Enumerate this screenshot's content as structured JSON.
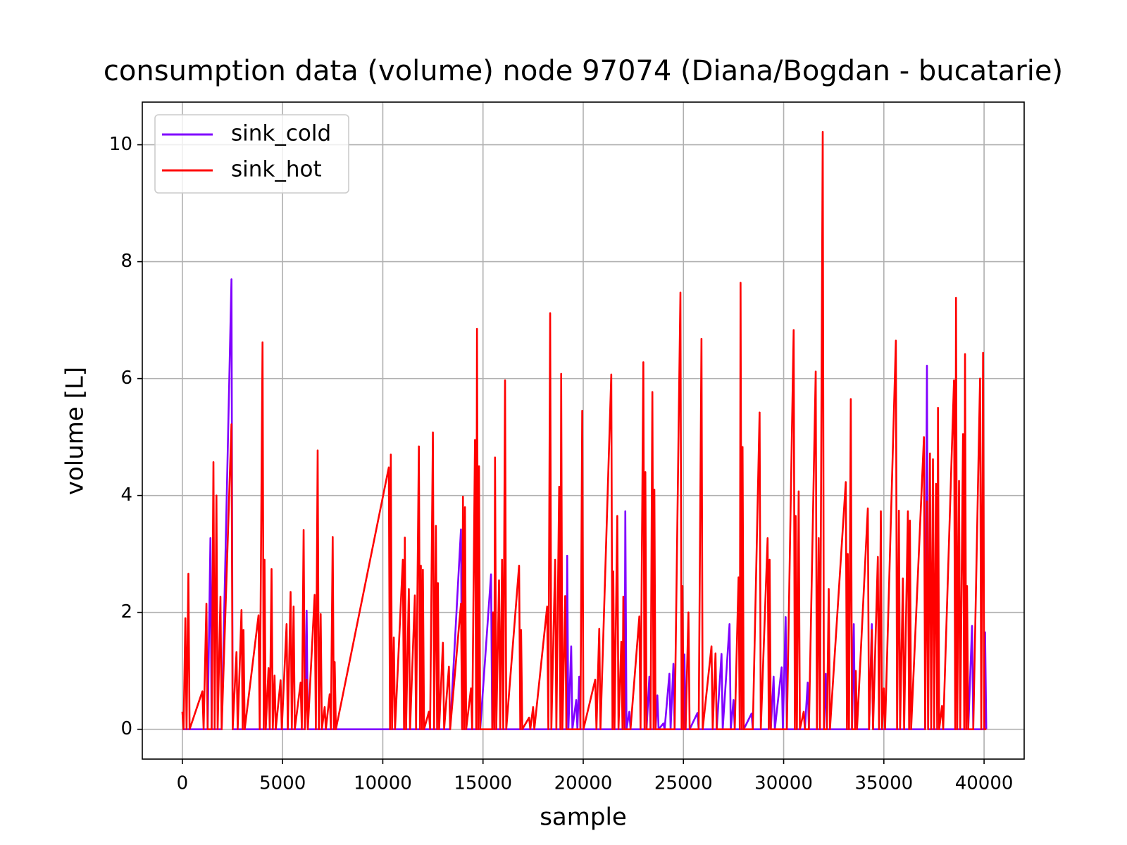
{
  "chart_data": {
    "type": "line",
    "title": "consumption data (volume) node 97074 (Diana/Bogdan - bucatarie)",
    "x_label": "sample",
    "y_label": "volume [L]",
    "xlim": [
      -2000,
      42000
    ],
    "ylim": [
      -0.51,
      10.73
    ],
    "xticks": [
      0,
      5000,
      10000,
      15000,
      20000,
      25000,
      30000,
      35000,
      40000
    ],
    "yticks": [
      0,
      2,
      4,
      6,
      8,
      10
    ],
    "grid": true,
    "legend": "upper-left",
    "x": [
      0,
      60,
      150,
      210,
      300,
      360,
      1000,
      1060,
      1200,
      1260,
      1400,
      1460,
      1550,
      1610,
      1700,
      1760,
      1900,
      1960,
      2450,
      2510,
      2700,
      2760,
      2950,
      3010,
      3050,
      3110,
      3800,
      3860,
      4000,
      4060,
      4100,
      4160,
      4300,
      4360,
      4450,
      4510,
      4600,
      4660,
      4900,
      4960,
      5200,
      5260,
      5400,
      5460,
      5550,
      5610,
      5900,
      5960,
      6050,
      6110,
      6200,
      6260,
      6600,
      6660,
      6750,
      6810,
      6900,
      6960,
      7100,
      7160,
      7350,
      7410,
      7500,
      7560,
      7600,
      7660,
      10300,
      10360,
      10400,
      10460,
      10550,
      10610,
      11000,
      11060,
      11100,
      11160,
      11300,
      11360,
      11600,
      11660,
      11800,
      11860,
      11900,
      11960,
      12000,
      12060,
      12300,
      12360,
      12500,
      12560,
      12650,
      12710,
      12750,
      12810,
      13000,
      13060,
      13300,
      13360,
      13900,
      13960,
      14000,
      14060,
      14100,
      14160,
      14400,
      14460,
      14600,
      14660,
      14700,
      14760,
      14800,
      14860,
      15400,
      15460,
      15500,
      15560,
      15600,
      15660,
      15800,
      15860,
      15950,
      16010,
      16100,
      16160,
      16800,
      16860,
      16900,
      16960,
      17300,
      17360,
      17500,
      17560,
      18200,
      18260,
      18350,
      18410,
      18600,
      18660,
      18800,
      18860,
      18900,
      18960,
      19100,
      19160,
      19200,
      19260,
      19400,
      19460,
      19650,
      19710,
      19800,
      19860,
      19950,
      20010,
      20600,
      20660,
      20800,
      20860,
      21400,
      21460,
      21500,
      21560,
      21700,
      21760,
      21900,
      21960,
      22000,
      22060,
      22100,
      22160,
      22300,
      22360,
      22800,
      22860,
      23000,
      23060,
      23100,
      23160,
      23300,
      23360,
      23450,
      23510,
      23550,
      23610,
      23700,
      23760,
      24000,
      24060,
      24300,
      24360,
      24500,
      24560,
      24850,
      24910,
      24950,
      25010,
      25050,
      25110,
      25250,
      25310,
      25700,
      25760,
      25900,
      25960,
      26400,
      26460,
      26600,
      26660,
      26900,
      26960,
      27300,
      27360,
      27500,
      27560,
      27750,
      27810,
      27850,
      27910,
      27950,
      28010,
      28400,
      28460,
      28800,
      28860,
      29200,
      29260,
      29300,
      29360,
      29500,
      29560,
      29900,
      29960,
      30100,
      30160,
      30500,
      30560,
      30600,
      30660,
      30750,
      30810,
      31000,
      31060,
      31200,
      31260,
      31600,
      31660,
      31750,
      31810,
      31950,
      32010,
      32100,
      32160,
      32250,
      32310,
      33100,
      33160,
      33200,
      33260,
      33350,
      33410,
      33500,
      33560,
      33600,
      33660,
      34200,
      34260,
      34400,
      34460,
      34700,
      34760,
      34850,
      34910,
      35000,
      35060,
      35600,
      35660,
      35750,
      35810,
      35950,
      36010,
      36200,
      36260,
      36300,
      36360,
      37000,
      37060,
      37150,
      37210,
      37300,
      37360,
      37450,
      37510,
      37600,
      37660,
      37700,
      37760,
      37900,
      37960,
      38500,
      38560,
      38600,
      38660,
      38750,
      38810,
      38950,
      39010,
      39050,
      39110,
      39150,
      39210,
      39400,
      39460,
      39800,
      39860,
      39950,
      40010,
      40050,
      40110
    ],
    "series": [
      {
        "name": "sink_cold",
        "color": "#8000ff",
        "values": [
          0,
          0,
          0,
          0,
          0,
          0,
          0,
          0,
          0,
          0,
          3.27,
          0,
          0,
          0,
          0,
          0,
          0,
          0,
          7.7,
          0,
          0,
          0,
          0,
          0,
          0,
          0,
          0,
          0,
          0,
          0,
          0,
          0,
          0,
          0,
          0,
          0,
          0,
          0,
          0,
          0,
          0,
          0,
          0,
          0,
          0,
          0,
          0,
          0,
          0,
          0,
          2.03,
          0,
          0,
          0,
          0,
          0,
          0,
          0,
          0,
          0,
          0,
          0,
          0,
          0,
          0,
          0,
          0,
          0,
          0,
          0,
          0,
          0,
          0,
          0,
          0,
          0,
          0,
          0,
          0,
          0,
          0,
          0,
          0,
          0,
          0,
          0,
          0,
          0,
          0,
          0,
          0,
          0,
          0,
          0,
          0,
          0,
          0,
          0,
          3.42,
          0,
          0,
          0,
          0,
          0,
          0,
          0,
          0,
          0,
          0,
          0,
          0,
          0,
          2.65,
          0,
          0,
          0,
          0,
          0,
          0,
          0,
          0,
          0,
          0,
          0,
          0,
          0,
          0,
          0,
          0,
          0,
          0,
          0,
          0,
          0,
          0,
          0,
          0,
          0,
          0,
          0,
          0,
          0,
          0,
          0,
          2.97,
          0,
          1.42,
          0,
          0.5,
          0,
          0.9,
          0,
          0,
          0,
          0,
          0,
          0,
          0,
          0,
          0,
          0,
          0,
          0,
          0,
          0,
          0,
          0,
          0,
          3.73,
          0,
          0.3,
          0,
          0,
          0,
          0,
          0,
          0,
          0,
          0.9,
          0,
          0,
          0,
          0,
          0,
          0.58,
          0,
          0.1,
          0,
          0.95,
          0,
          1.12,
          0,
          0,
          0,
          0,
          0,
          1.28,
          0,
          0,
          0,
          0.28,
          0,
          0,
          0,
          0,
          0,
          0,
          0,
          1.29,
          0,
          1.8,
          0,
          0.5,
          0,
          0,
          0,
          0,
          0,
          0,
          0,
          0.27,
          0,
          0,
          0,
          0,
          0,
          1.65,
          0,
          0.9,
          0,
          1.06,
          0,
          1.92,
          0,
          0,
          0,
          0,
          0,
          0,
          0,
          0,
          0,
          0.8,
          0,
          0,
          0,
          0,
          0,
          0,
          0,
          0.95,
          0,
          0,
          0,
          0,
          0,
          0,
          0,
          0,
          0,
          1.8,
          0,
          0,
          0,
          0,
          0,
          1.8,
          0,
          0,
          0,
          0,
          0,
          0,
          0,
          0,
          0,
          0,
          0,
          0,
          0,
          0,
          0,
          0,
          0,
          0,
          0,
          6.22,
          0,
          0,
          0,
          0,
          0,
          0,
          0,
          0,
          0,
          0,
          0,
          0,
          0,
          0,
          0,
          0,
          0,
          0,
          0,
          0,
          0,
          0,
          0,
          1.77,
          0,
          0,
          0,
          0,
          0,
          1.66,
          0
        ]
      },
      {
        "name": "sink_hot",
        "color": "#ff0000",
        "values": [
          0.3,
          0,
          1.9,
          0,
          2.66,
          0,
          0.65,
          0,
          2.15,
          0,
          0,
          0,
          4.57,
          0,
          4.0,
          0,
          2.27,
          0,
          5.22,
          0,
          1.32,
          0,
          2.04,
          0,
          1.7,
          0,
          1.95,
          0,
          6.62,
          0,
          2.9,
          0,
          1.05,
          0,
          2.74,
          0,
          0.92,
          0,
          0.84,
          0,
          1.8,
          0,
          2.35,
          0,
          2.1,
          0,
          0.8,
          0,
          3.41,
          0,
          0.85,
          0,
          2.3,
          0,
          4.77,
          0,
          1.97,
          0,
          0.38,
          0,
          0.6,
          0,
          3.29,
          0,
          1.15,
          0,
          4.48,
          0,
          4.7,
          0,
          1.57,
          0,
          2.9,
          0,
          3.28,
          0,
          2.4,
          0,
          2.29,
          0,
          4.84,
          0,
          2.8,
          0,
          2.73,
          0,
          0.3,
          0,
          5.08,
          0,
          3.48,
          0,
          2.5,
          0,
          1.48,
          0,
          1.07,
          0,
          2.15,
          0,
          3.98,
          0,
          3.8,
          0,
          0.7,
          0,
          4.95,
          0,
          6.85,
          0,
          4.5,
          0,
          0,
          0,
          2.0,
          0,
          4.65,
          0,
          2.55,
          0,
          2.9,
          0,
          5.97,
          0,
          2.8,
          0,
          1.7,
          0,
          0.2,
          0,
          0.38,
          0,
          2.1,
          0,
          7.12,
          0,
          2.9,
          0,
          4.15,
          0,
          6.08,
          0,
          2.28,
          0,
          0,
          0,
          0,
          0,
          0,
          0,
          0,
          0,
          5.45,
          0,
          0.85,
          0,
          1.72,
          0,
          6.07,
          0,
          2.7,
          0,
          3.65,
          0,
          1.5,
          0,
          2.27,
          0,
          0,
          0,
          0,
          0,
          1.93,
          0,
          6.28,
          0,
          4.4,
          0,
          0,
          0,
          5.77,
          0,
          4.1,
          0,
          0,
          0,
          0,
          0,
          0,
          0,
          0,
          0,
          7.47,
          0,
          2.45,
          0,
          0,
          0,
          2.0,
          0,
          0,
          0,
          6.68,
          0,
          1.42,
          0,
          1.3,
          0,
          0,
          0,
          0,
          0,
          0,
          0,
          2.6,
          0,
          7.64,
          0,
          4.83,
          0,
          0,
          0,
          5.42,
          0,
          3.27,
          0,
          2.9,
          0,
          0,
          0,
          0,
          0,
          0,
          0,
          6.83,
          0,
          3.65,
          0,
          4.07,
          0,
          0.3,
          0,
          0,
          0,
          6.12,
          0,
          3.27,
          0,
          10.22,
          0,
          0,
          0,
          2.4,
          0,
          4.23,
          0,
          3.0,
          0,
          5.65,
          0,
          0,
          0,
          1.0,
          0,
          3.78,
          0,
          1.7,
          0,
          2.95,
          0,
          3.73,
          0,
          0.7,
          0,
          6.65,
          0,
          3.74,
          0,
          2.58,
          0,
          3.73,
          0,
          3.57,
          0,
          5.0,
          0,
          3.9,
          0,
          4.72,
          0,
          4.62,
          0,
          4.2,
          0,
          5.5,
          0,
          0.4,
          0,
          5.97,
          0,
          7.38,
          0,
          4.25,
          0,
          5.05,
          0,
          6.42,
          0,
          2.45,
          0,
          0,
          0,
          6.0,
          0,
          6.44,
          0,
          0,
          0
        ]
      }
    ]
  }
}
